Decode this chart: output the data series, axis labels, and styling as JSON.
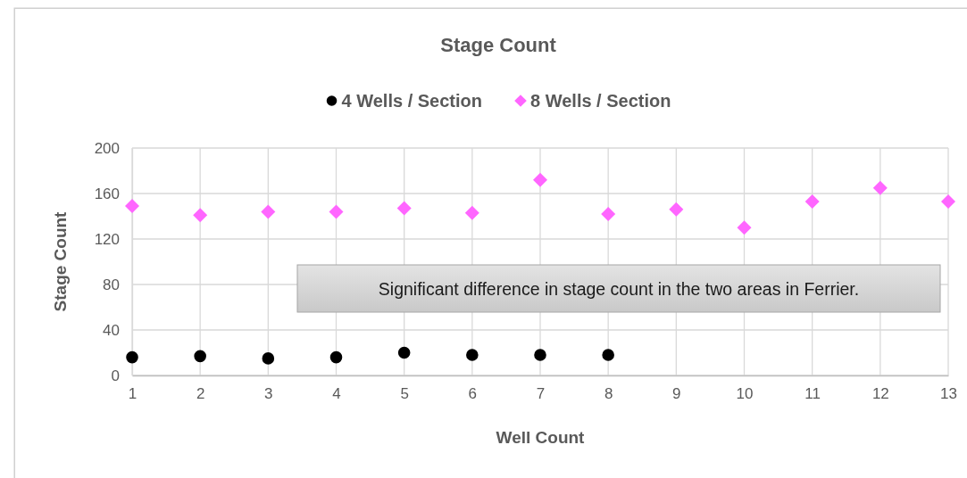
{
  "chart_data": {
    "type": "scatter",
    "title": "Stage Count",
    "xlabel": "Well Count",
    "ylabel": "Stage Count",
    "series": [
      {
        "name": "4 Wells / Section",
        "color": "#000000",
        "marker": "circle",
        "x": [
          1,
          2,
          3,
          4,
          5,
          6,
          7,
          8
        ],
        "values": [
          16,
          17,
          15,
          16,
          20,
          18,
          18,
          18
        ]
      },
      {
        "name": "8 Wells / Section",
        "color": "#ff66ff",
        "marker": "diamond",
        "x": [
          1,
          2,
          3,
          4,
          5,
          6,
          7,
          8,
          9,
          10,
          11,
          12,
          13
        ],
        "values": [
          149,
          141,
          144,
          144,
          147,
          143,
          172,
          142,
          146,
          130,
          153,
          165,
          153
        ]
      }
    ],
    "xlim": [
      1,
      13
    ],
    "xticks": [
      1,
      2,
      3,
      4,
      5,
      6,
      7,
      8,
      9,
      10,
      11,
      12,
      13
    ],
    "ylim": [
      0,
      200
    ],
    "yticks": [
      0,
      40,
      80,
      120,
      160,
      200
    ],
    "grid": true,
    "legend": "top",
    "annotations": [
      "Significant difference in stage count in the two areas in Ferrier."
    ]
  }
}
